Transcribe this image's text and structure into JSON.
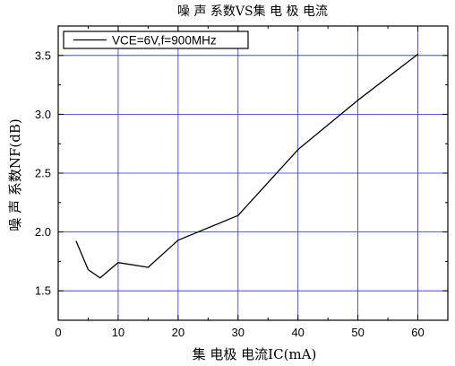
{
  "chart_data": {
    "type": "line",
    "title": "噪 声 系数VS集 电 极 电流",
    "xlabel": "集 电极 电流IC(mA)",
    "ylabel": "噪 声 系数NF(dB)",
    "xlim": [
      0,
      65
    ],
    "ylim": [
      1.25,
      3.75
    ],
    "x_ticks": [
      0,
      10,
      20,
      30,
      40,
      50,
      60
    ],
    "x_tick_labels": [
      "0",
      "10",
      "20",
      "30",
      "40",
      "50",
      "60"
    ],
    "y_ticks": [
      1.5,
      2.0,
      2.5,
      3.0,
      3.5
    ],
    "y_tick_labels": [
      "1.5",
      "2.0",
      "2.5",
      "3.0",
      "3.5"
    ],
    "grid": true,
    "legend_position": "top-left",
    "series": [
      {
        "name": "VCE=6V,f=900MHz",
        "color": "#000000",
        "x": [
          3,
          5,
          7,
          10,
          15,
          20,
          30,
          40,
          50,
          60
        ],
        "y": [
          1.92,
          1.68,
          1.61,
          1.74,
          1.7,
          1.93,
          2.14,
          2.7,
          3.12,
          3.51
        ]
      }
    ],
    "colors": {
      "grid": "#2b2bd4",
      "axis": "#000000",
      "line": "#000000"
    }
  }
}
